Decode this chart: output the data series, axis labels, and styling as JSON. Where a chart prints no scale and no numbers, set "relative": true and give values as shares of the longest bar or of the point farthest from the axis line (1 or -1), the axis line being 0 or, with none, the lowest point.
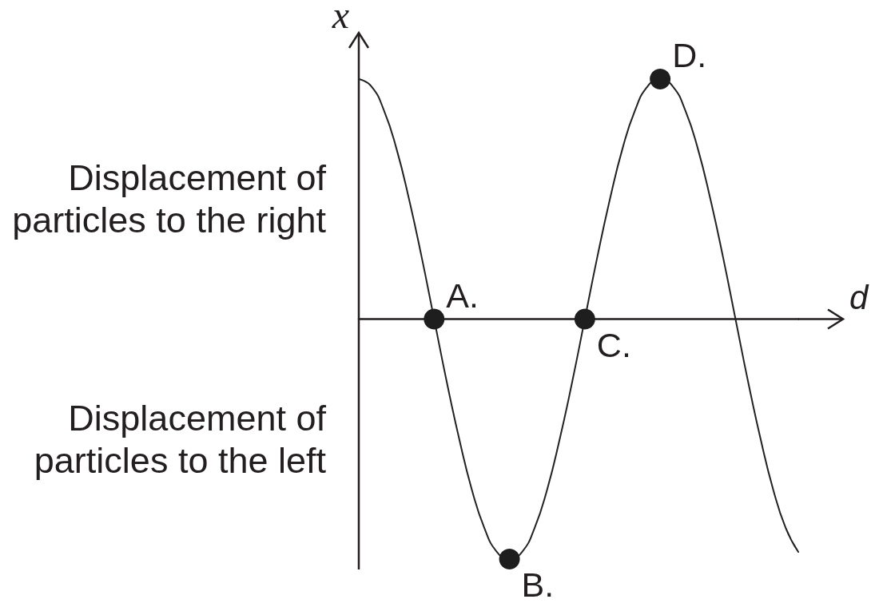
{
  "chart_data": {
    "type": "line",
    "xlabel": "d",
    "ylabel": "x",
    "relative": true,
    "line_style": "solid",
    "categories": [
      null,
      null,
      null,
      null,
      null,
      null,
      null,
      null,
      null,
      null,
      null,
      null,
      null,
      null,
      null,
      null,
      null,
      null,
      null,
      null,
      null,
      null,
      null,
      null,
      null,
      null,
      null,
      null,
      null,
      null,
      null,
      null,
      null,
      null,
      null,
      null
    ],
    "annotations": [
      "Displacement of particles to the right",
      "Displacement of particles to the left",
      "A.",
      "B.",
      "C.",
      "D."
    ],
    "series": [
      {
        "color": "#222222",
        "marker": "none",
        "values": [
          1,
          0.97,
          0.87,
          0.71,
          0.5,
          0.26,
          0,
          -0.26,
          -0.5,
          -0.71,
          -0.87,
          -0.97,
          -1,
          -0.97,
          -0.87,
          -0.71,
          -0.5,
          -0.26,
          0,
          0.26,
          0.5,
          0.71,
          0.87,
          0.97,
          1,
          0.97,
          0.87,
          0.71,
          0.5,
          0.26,
          0,
          -0.26,
          -0.5,
          -0.71,
          -0.87,
          -0.97
        ]
      },
      {
        "color": "#1e1e1e",
        "marker": "circle",
        "values": [
          null,
          null,
          null,
          null,
          null,
          null,
          0,
          null,
          null,
          null,
          null,
          null,
          -1,
          null,
          null,
          null,
          null,
          null,
          0,
          null,
          null,
          null,
          null,
          null,
          1,
          null,
          null,
          null,
          null,
          null,
          null,
          null,
          null,
          null,
          null,
          null
        ]
      }
    ]
  }
}
